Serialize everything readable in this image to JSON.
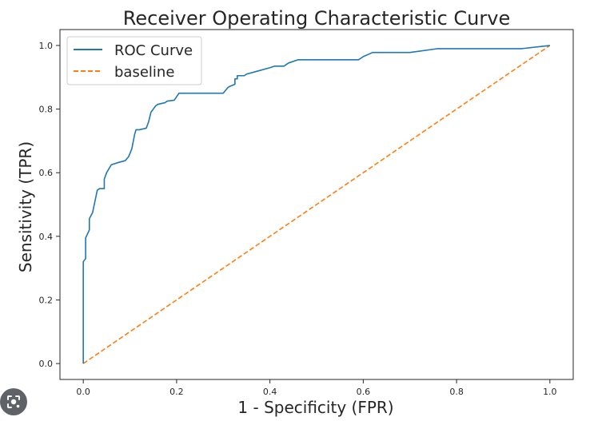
{
  "chart_data": {
    "type": "line",
    "title": "Receiver Operating Characteristic Curve",
    "xlabel": "1 - Specificity (FPR)",
    "ylabel": "Sensitivity (TPR)",
    "xlim": [
      -0.05,
      1.05
    ],
    "ylim": [
      -0.05,
      1.05
    ],
    "xticks": [
      "0.0",
      "0.2",
      "0.4",
      "0.6",
      "0.8",
      "1.0"
    ],
    "yticks": [
      "0.0",
      "0.2",
      "0.4",
      "0.6",
      "0.8",
      "1.0"
    ],
    "grid": false,
    "legend_position": "top-left",
    "series": [
      {
        "name": "ROC Curve",
        "color": "#1f77b4",
        "style": "solid",
        "x": [
          0.0,
          0.0,
          0.0,
          0.005,
          0.005,
          0.013,
          0.013,
          0.02,
          0.025,
          0.03,
          0.035,
          0.045,
          0.045,
          0.05,
          0.06,
          0.075,
          0.09,
          0.097,
          0.104,
          0.11,
          0.113,
          0.12,
          0.135,
          0.14,
          0.145,
          0.155,
          0.16,
          0.175,
          0.18,
          0.195,
          0.205,
          0.225,
          0.25,
          0.275,
          0.3,
          0.31,
          0.315,
          0.325,
          0.325,
          0.33,
          0.33,
          0.345,
          0.35,
          0.37,
          0.4,
          0.41,
          0.43,
          0.44,
          0.46,
          0.5,
          0.55,
          0.59,
          0.6,
          0.62,
          0.65,
          0.7,
          0.76,
          0.8,
          0.9,
          0.94,
          1.0
        ],
        "y": [
          0.0,
          0.3,
          0.32,
          0.33,
          0.395,
          0.42,
          0.455,
          0.475,
          0.51,
          0.545,
          0.55,
          0.55,
          0.58,
          0.6,
          0.625,
          0.632,
          0.638,
          0.65,
          0.675,
          0.72,
          0.735,
          0.735,
          0.74,
          0.76,
          0.79,
          0.81,
          0.815,
          0.82,
          0.825,
          0.828,
          0.85,
          0.85,
          0.85,
          0.85,
          0.85,
          0.868,
          0.872,
          0.878,
          0.895,
          0.895,
          0.905,
          0.905,
          0.91,
          0.918,
          0.93,
          0.935,
          0.935,
          0.945,
          0.955,
          0.955,
          0.955,
          0.955,
          0.965,
          0.978,
          0.978,
          0.978,
          0.99,
          0.99,
          0.99,
          0.99,
          1.0
        ]
      },
      {
        "name": "baseline",
        "color": "#ff7f0e",
        "style": "dashed",
        "x": [
          0.0,
          1.0
        ],
        "y": [
          0.0,
          1.0
        ]
      }
    ]
  },
  "ui": {
    "lens_icon": "image-search-icon"
  }
}
